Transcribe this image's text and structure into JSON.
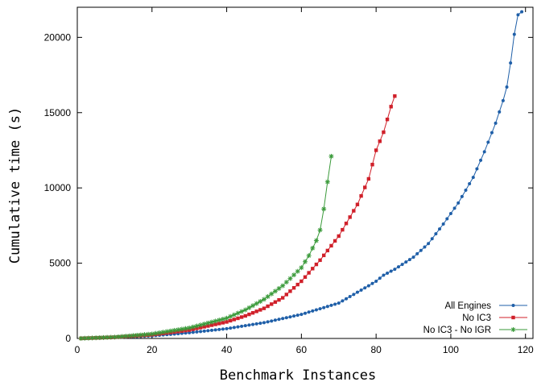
{
  "chart_data": {
    "type": "line",
    "title": "",
    "xlabel": "Benchmark Instances",
    "ylabel": "Cumulative time (s)",
    "xlim": [
      0,
      122
    ],
    "ylim": [
      0,
      22000
    ],
    "x_ticks": [
      0,
      20,
      40,
      60,
      80,
      100,
      120
    ],
    "y_ticks": [
      0,
      5000,
      10000,
      15000,
      20000
    ],
    "grid": false,
    "legend_position": "bottom-right",
    "series": [
      {
        "name": "All Engines",
        "color": "#1f5fa8",
        "marker": "circle",
        "count": 119,
        "anchors": [
          [
            1,
            5
          ],
          [
            10,
            60
          ],
          [
            20,
            170
          ],
          [
            30,
            380
          ],
          [
            40,
            650
          ],
          [
            50,
            1050
          ],
          [
            60,
            1600
          ],
          [
            70,
            2350
          ],
          [
            78,
            3500
          ],
          [
            80,
            3800
          ],
          [
            82,
            4200
          ],
          [
            85,
            4600
          ],
          [
            90,
            5400
          ],
          [
            94,
            6300
          ],
          [
            98,
            7600
          ],
          [
            102,
            9000
          ],
          [
            106,
            10700
          ],
          [
            109,
            12400
          ],
          [
            112,
            14300
          ],
          [
            114,
            15800
          ],
          [
            115,
            16700
          ],
          [
            116,
            18300
          ],
          [
            117,
            20200
          ],
          [
            118,
            21500
          ],
          [
            119,
            21700
          ]
        ]
      },
      {
        "name": "No IC3",
        "color": "#d0202a",
        "marker": "square",
        "count": 85,
        "anchors": [
          [
            1,
            5
          ],
          [
            10,
            80
          ],
          [
            20,
            240
          ],
          [
            30,
            560
          ],
          [
            40,
            1100
          ],
          [
            45,
            1500
          ],
          [
            50,
            2000
          ],
          [
            55,
            2700
          ],
          [
            60,
            3800
          ],
          [
            65,
            5200
          ],
          [
            70,
            6800
          ],
          [
            75,
            8900
          ],
          [
            78,
            10600
          ],
          [
            80,
            12500
          ],
          [
            82,
            13700
          ],
          [
            84,
            15400
          ],
          [
            85,
            16100
          ]
        ]
      },
      {
        "name": "No IC3 - No IGR",
        "color": "#3a9a3a",
        "marker": "star",
        "count": 68,
        "anchors": [
          [
            1,
            5
          ],
          [
            10,
            90
          ],
          [
            20,
            300
          ],
          [
            30,
            700
          ],
          [
            40,
            1350
          ],
          [
            45,
            1900
          ],
          [
            50,
            2600
          ],
          [
            55,
            3500
          ],
          [
            60,
            4700
          ],
          [
            62,
            5500
          ],
          [
            64,
            6500
          ],
          [
            65,
            7200
          ],
          [
            66,
            8600
          ],
          [
            67,
            10400
          ],
          [
            68,
            12100
          ]
        ]
      }
    ]
  }
}
